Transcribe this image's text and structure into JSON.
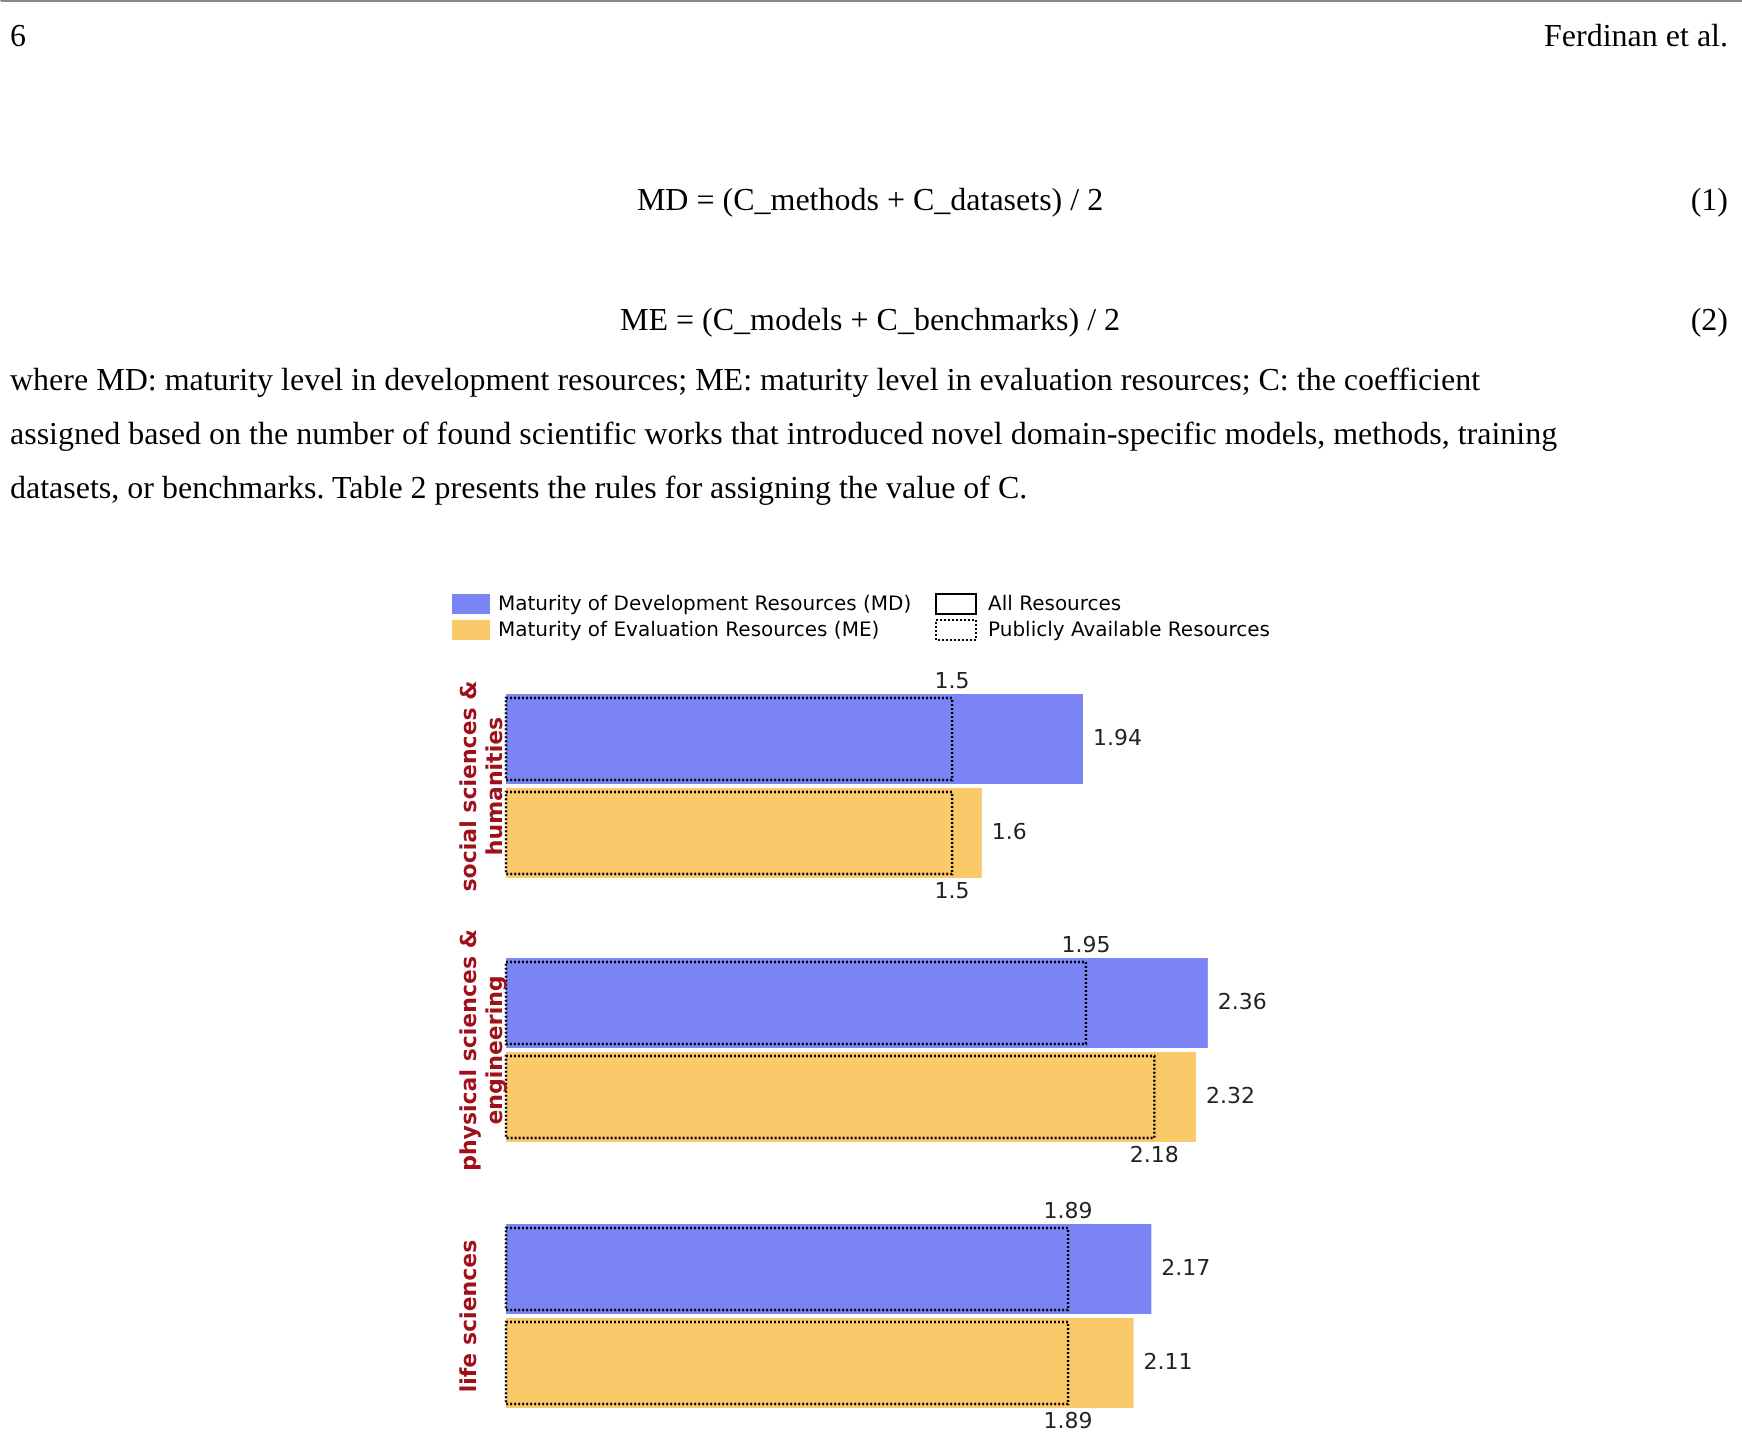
{
  "chart_data": {
    "type": "bar",
    "orientation": "horizontal",
    "categories": [
      "social sciences & humanities",
      "physical sciences & engineering",
      "life sciences"
    ],
    "series": [
      {
        "name": "Maturity of Development Resources (MD)",
        "color": "#7b84f4",
        "values": [
          1.94,
          2.36,
          2.17
        ]
      },
      {
        "name": "Maturity of Evaluation Resources (ME)",
        "color": "#f9c96a",
        "values": [
          1.6,
          2.32,
          2.11
        ]
      },
      {
        "name": "Publicly Available Resources",
        "color": "#7b84f4",
        "values": [
          1.5,
          1.95,
          1.89
        ]
      },
      {
        "color": "#f9c96a",
        "values": [
          1.5,
          2.18,
          1.89
        ]
      }
    ],
    "data_labels": true,
    "legend": "top",
    "annotations": [
      "6",
      "Ferdinan et al.",
      "MD = (C_methods + C_datasets) / 2",
      "(1)",
      "ME = (C_models + C_benchmarks) / 2",
      "(2)",
      "where MD: maturity level in development resources; ME: maturity level in evaluation resources; C: the coefficient assigned based on the number of found scientific works that introduced novel domain-specific models, methods, training datasets, or benchmarks. Table 2 presents the rules for assigning the value of C.",
      "All Resources"
    ]
  }
}
